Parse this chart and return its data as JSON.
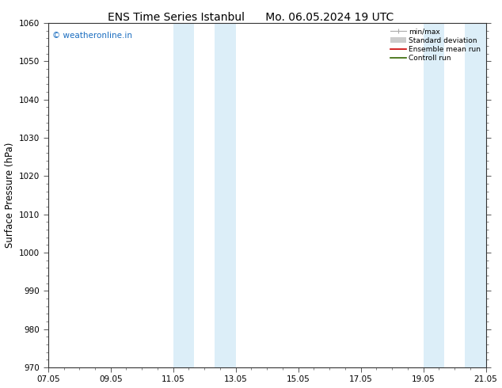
{
  "title_left": "ENS Time Series Istanbul",
  "title_right": "Mo. 06.05.2024 19 UTC",
  "ylabel": "Surface Pressure (hPa)",
  "ylim": [
    970,
    1060
  ],
  "yticks": [
    970,
    980,
    990,
    1000,
    1010,
    1020,
    1030,
    1040,
    1050,
    1060
  ],
  "xtick_labels": [
    "07.05",
    "09.05",
    "11.05",
    "13.05",
    "15.05",
    "17.05",
    "19.05",
    "21.05"
  ],
  "xtick_positions": [
    0,
    2,
    4,
    6,
    8,
    10,
    12,
    14
  ],
  "xlim": [
    0,
    14
  ],
  "shaded_bands": [
    {
      "x_start": 4.0,
      "x_end": 4.67
    },
    {
      "x_start": 5.33,
      "x_end": 6.0
    },
    {
      "x_start": 12.0,
      "x_end": 12.67
    },
    {
      "x_start": 13.33,
      "x_end": 14.0
    }
  ],
  "shaded_color": "#dceef8",
  "background_color": "#ffffff",
  "watermark_text": "© weatheronline.in",
  "watermark_color": "#1a6dc0",
  "minmax_color": "#aaaaaa",
  "std_color": "#cccccc",
  "ensemble_color": "#cc0000",
  "control_color": "#336600",
  "title_fontsize": 10,
  "tick_fontsize": 7.5,
  "ylabel_fontsize": 8.5
}
